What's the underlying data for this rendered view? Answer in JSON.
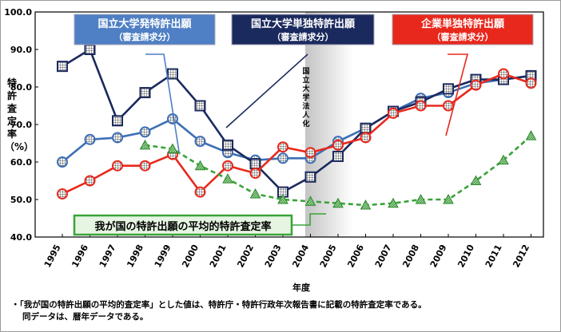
{
  "chart_data": {
    "type": "line",
    "xlabel": "年度",
    "ylabel": "特許査定率（%）",
    "ylim": [
      40,
      100
    ],
    "yticks": [
      "40.0",
      "50.0",
      "60.0",
      "70.0",
      "80.0",
      "90.0",
      "100.0"
    ],
    "x": [
      "1995",
      "1996",
      "1997",
      "1998",
      "1999",
      "2000",
      "2001",
      "2002",
      "2003",
      "2004",
      "2005",
      "2006",
      "2007",
      "2008",
      "2009",
      "2010",
      "2011",
      "2012"
    ],
    "series": [
      {
        "name": "国立大学発特許出願（審査請求分）",
        "color": "#3d6fb5",
        "marker": "circle-grid",
        "values": [
          60,
          66,
          66.5,
          68,
          71.5,
          65.5,
          62.5,
          60.5,
          61,
          61,
          65.5,
          69,
          73.5,
          77,
          78.5,
          81,
          82,
          83
        ]
      },
      {
        "name": "国立大学単独特許出願（審査請求分）",
        "color": "#1b2a5e",
        "marker": "square-grid",
        "values": [
          85.5,
          90,
          71,
          78.5,
          83.5,
          75,
          64.5,
          59.5,
          52,
          56,
          61.5,
          69,
          73.5,
          76,
          79.5,
          82,
          82,
          83
        ]
      },
      {
        "name": "企業単独特許出願（審査請求分）",
        "color": "#e8281c",
        "marker": "circle-grid",
        "values": [
          51.5,
          55,
          59,
          59,
          62,
          52,
          59,
          57,
          64,
          62.5,
          64.5,
          66.5,
          73,
          75,
          75,
          80.5,
          83.5,
          81
        ]
      },
      {
        "name": "我が国の特許出願の平均的特許査定率",
        "color": "#3aa33a",
        "marker": "triangle",
        "dashed": true,
        "values": [
          null,
          null,
          null,
          64.5,
          63.5,
          59,
          55.5,
          51.5,
          50,
          49.5,
          49,
          48.5,
          49,
          50,
          50,
          55,
          60.5,
          67
        ]
      }
    ],
    "legend": [
      {
        "label": "国立大学発特許出願",
        "sub": "（審査請求分）",
        "bg": "#4f7fc4"
      },
      {
        "label": "国立大学単独特許出願",
        "sub": "（審査請求分）",
        "bg": "#1b2a5e"
      },
      {
        "label": "企業単独特許出願",
        "sub": "（審査請求分）",
        "bg": "#e8281c"
      }
    ],
    "green_label": "我が国の特許出願の平均的特許査定率",
    "annotation": "国立大学法人化",
    "grid": false
  },
  "footnote": {
    "line1": "・「我が国の特許出願の平均的査定率」とした値は、特許庁・特許行政年次報告書に記載の特許査定率である。",
    "line2": "同データは、暦年データである。"
  }
}
